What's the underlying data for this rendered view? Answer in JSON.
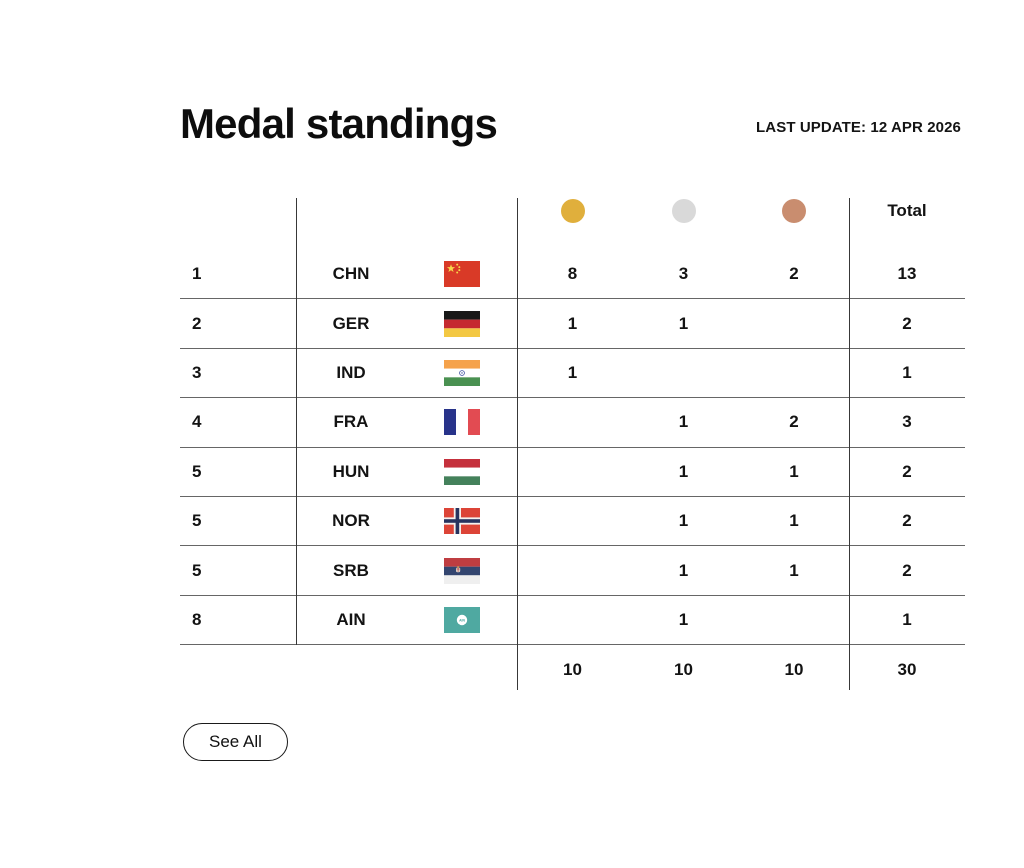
{
  "header": {
    "title": "Medal standings",
    "last_update": "LAST UPDATE: 12 APR 2026"
  },
  "table": {
    "header_row": {
      "total_label": "Total",
      "gold_icon": "gold-medal-icon",
      "silver_icon": "silver-medal-icon",
      "bronze_icon": "bronze-medal-icon"
    },
    "medal_colors": {
      "gold": "#E0AF3C",
      "silver": "#D9D9D9",
      "bronze": "#C98D6F"
    },
    "rows": [
      {
        "rank": "1",
        "country": "CHN",
        "flag": "chn",
        "gold": "8",
        "silver": "3",
        "bronze": "2",
        "total": "13"
      },
      {
        "rank": "2",
        "country": "GER",
        "flag": "ger",
        "gold": "1",
        "silver": "1",
        "bronze": "",
        "total": "2"
      },
      {
        "rank": "3",
        "country": "IND",
        "flag": "ind",
        "gold": "1",
        "silver": "",
        "bronze": "",
        "total": "1"
      },
      {
        "rank": "4",
        "country": "FRA",
        "flag": "fra",
        "gold": "",
        "silver": "1",
        "bronze": "2",
        "total": "3"
      },
      {
        "rank": "5",
        "country": "HUN",
        "flag": "hun",
        "gold": "",
        "silver": "1",
        "bronze": "1",
        "total": "2"
      },
      {
        "rank": "5",
        "country": "NOR",
        "flag": "nor",
        "gold": "",
        "silver": "1",
        "bronze": "1",
        "total": "2"
      },
      {
        "rank": "5",
        "country": "SRB",
        "flag": "srb",
        "gold": "",
        "silver": "1",
        "bronze": "1",
        "total": "2"
      },
      {
        "rank": "8",
        "country": "AIN",
        "flag": "ain",
        "gold": "",
        "silver": "1",
        "bronze": "",
        "total": "1"
      }
    ],
    "totals": {
      "gold": "10",
      "silver": "10",
      "bronze": "10",
      "total": "30"
    }
  },
  "footer": {
    "see_all_label": "See All"
  }
}
